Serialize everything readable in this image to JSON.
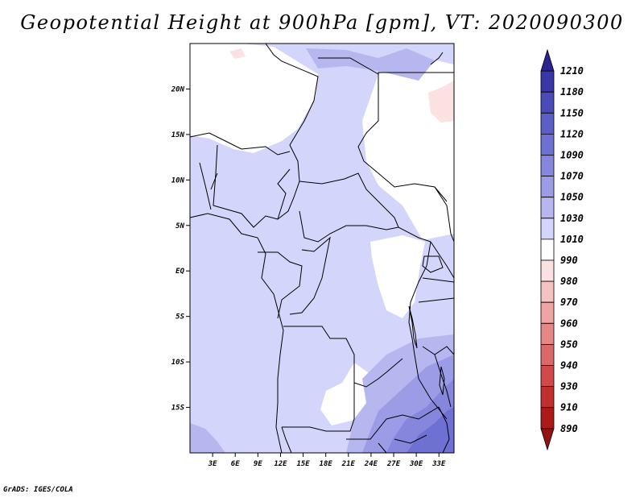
{
  "title": "Geopotential Height at 900hPa [gpm], VT: 2020090300",
  "credit": "GrADS: IGES/COLA",
  "map": {
    "lat_labels": [
      "20N",
      "15N",
      "10N",
      "5N",
      "EQ",
      "5S",
      "10S",
      "15S"
    ],
    "lon_labels": [
      "3E",
      "6E",
      "9E",
      "12E",
      "15E",
      "18E",
      "21E",
      "24E",
      "27E",
      "30E",
      "33E"
    ],
    "lat_values": [
      20,
      15,
      10,
      5,
      0,
      -5,
      -10,
      -15
    ],
    "lon_values": [
      3,
      6,
      9,
      12,
      15,
      18,
      21,
      24,
      27,
      30,
      33
    ],
    "lon_range": [
      0,
      35
    ],
    "lat_range": [
      -20,
      25
    ]
  },
  "colorbar": {
    "labels": [
      "1210",
      "1180",
      "1150",
      "1120",
      "1090",
      "1070",
      "1050",
      "1030",
      "1010",
      "990",
      "980",
      "970",
      "960",
      "950",
      "940",
      "930",
      "910",
      "890"
    ],
    "colors": [
      "#2a2392",
      "#3a37a8",
      "#4a4bb9",
      "#5c5ec8",
      "#6e71d2",
      "#8586dc",
      "#9c9ce6",
      "#b7b7f0",
      "#d4d5fa",
      "#ffffff",
      "#fbe1e1",
      "#f5c2c2",
      "#eea4a4",
      "#e68787",
      "#db6969",
      "#d04a4a",
      "#c22f2f",
      "#ae1a1a",
      "#961313"
    ]
  }
}
